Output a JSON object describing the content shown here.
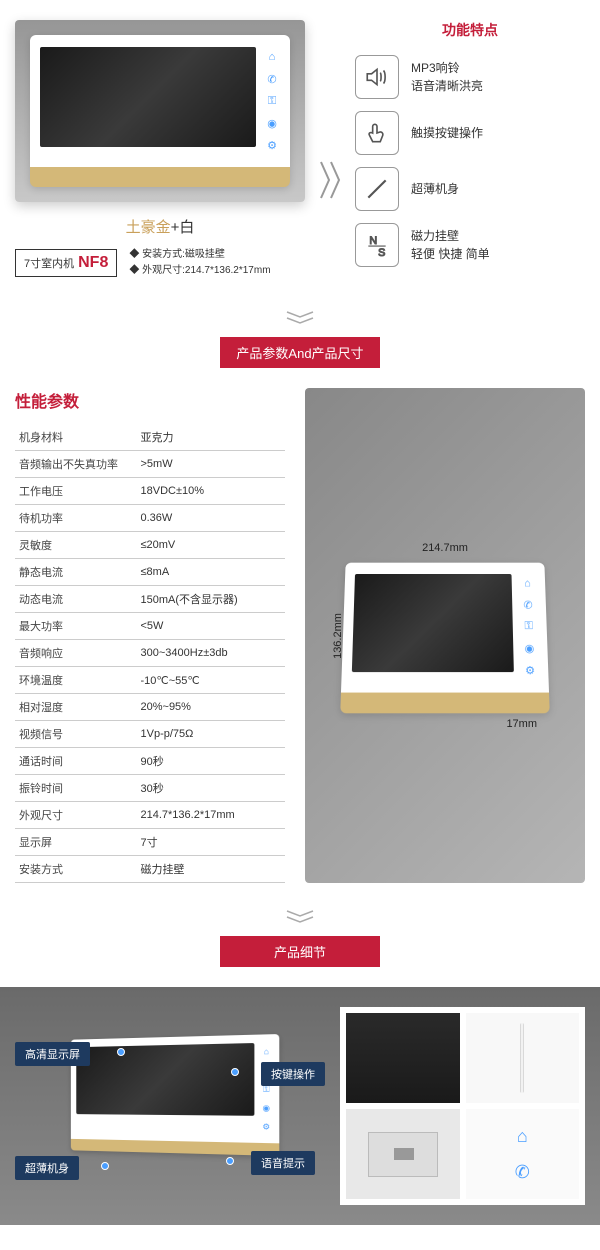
{
  "product": {
    "color_gold": "土豪金",
    "color_plus": "+",
    "color_white": "白",
    "model_prefix": "7寸室内机",
    "model_code": "NF8",
    "spec1": "◆ 安装方式:磁吸挂壁",
    "spec2": "◆ 外观尺寸:214.7*136.2*17mm"
  },
  "features": {
    "title": "功能特点",
    "items": [
      {
        "icon": "speaker",
        "line1": "MP3响铃",
        "line2": "语音清晰洪亮"
      },
      {
        "icon": "touch",
        "line1": "触摸按键操作",
        "line2": ""
      },
      {
        "icon": "slim",
        "line1": "超薄机身",
        "line2": ""
      },
      {
        "icon": "magnet",
        "line1": "磁力挂壁",
        "line2": "轻便 快捷 简单"
      }
    ]
  },
  "banner1": "产品参数And产品尺寸",
  "banner2": "产品细节",
  "specs": {
    "title": "性能参数",
    "rows": [
      [
        "机身材料",
        "亚克力"
      ],
      [
        "音频输出不失真功率",
        ">5mW"
      ],
      [
        "工作电压",
        "18VDC±10%"
      ],
      [
        "待机功率",
        "0.36W"
      ],
      [
        "灵敏度",
        "≤20mV"
      ],
      [
        "静态电流",
        "≤8mA"
      ],
      [
        "动态电流",
        "150mA(不含显示器)"
      ],
      [
        "最大功率",
        "<5W"
      ],
      [
        "音频响应",
        "300~3400Hz±3db"
      ],
      [
        "环境温度",
        "-10℃~55℃"
      ],
      [
        "相对湿度",
        "20%~95%"
      ],
      [
        "视频信号",
        "1Vp-p/75Ω"
      ],
      [
        "通话时间",
        "90秒"
      ],
      [
        "振铃时间",
        "30秒"
      ],
      [
        "外观尺寸",
        "214.7*136.2*17mm"
      ],
      [
        "显示屏",
        "7寸"
      ],
      [
        "安装方式",
        "磁力挂壁"
      ]
    ]
  },
  "dimensions": {
    "w": "214.7mm",
    "h": "136.2mm",
    "d": "17mm"
  },
  "callouts": {
    "c1": "高清显示屏",
    "c2": "超薄机身",
    "c3": "按键操作",
    "c4": "语音提示"
  },
  "colors": {
    "accent": "#c41e3a",
    "gold": "#d4b878",
    "icon": "#4a9eff"
  }
}
